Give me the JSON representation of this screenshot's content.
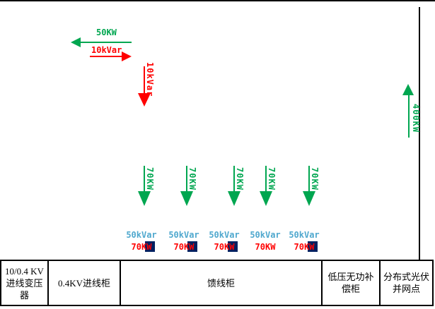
{
  "colors": {
    "active_green": "#00A650",
    "reactive_red": "#FF0000",
    "reactive_blue": "#4FA8CE",
    "highlight_navy": "#002060",
    "line_black": "#000000"
  },
  "grid_exchange": {
    "active_export_label": "50KW",
    "reactive_import_label": "10kVar",
    "reactive_down_label": "10kVar"
  },
  "pv": {
    "injection_label": "400KW"
  },
  "feeders": [
    {
      "flow_label": "70KW",
      "reactive_label": "50kVar",
      "active_label": "70KW",
      "w_highlight": true
    },
    {
      "flow_label": "70KW",
      "reactive_label": "50kVar",
      "active_label": "70KW",
      "w_highlight": true
    },
    {
      "flow_label": "70KW",
      "reactive_label": "50kVar",
      "active_label": "70KW",
      "w_highlight": true
    },
    {
      "flow_label": "70KW",
      "reactive_label": "50kVar",
      "active_label": "70KW",
      "w_highlight": false
    },
    {
      "flow_label": "70KW",
      "reactive_label": "50kVar",
      "active_label": "70KW",
      "w_highlight": true
    }
  ],
  "table": {
    "cells": [
      "10/0.4 KV进线变压器",
      "0.4KV进线柜",
      "馈线柜",
      "低压无功补偿柜",
      "分布式光伏并网点"
    ]
  }
}
